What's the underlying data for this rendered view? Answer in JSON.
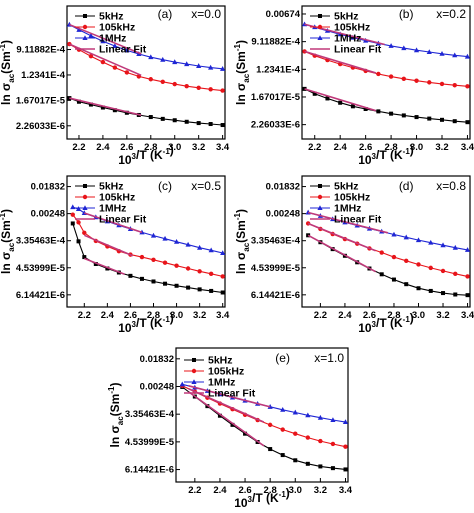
{
  "figure": {
    "y_axis_label": {
      "base": "ln σ",
      "sub": "ac",
      "unit_open": "(Sm",
      "unit_sup": "-1",
      "unit_close": ")"
    },
    "x_axis_label": {
      "base": "10",
      "sup": "3",
      "rest": "/T (K",
      "rest_sup": "-1",
      "rest_close": ")"
    },
    "x_ticks": [
      "2.2",
      "2.4",
      "2.6",
      "2.8",
      "3.0",
      "3.2",
      "3.4"
    ],
    "legend": [
      "5kHz",
      "105kHz",
      "1MHz",
      "Linear Fit"
    ]
  },
  "colors": {
    "5kHz": "#000000",
    "105kHz": "#e8141a",
    "1MHz": "#1f26d4",
    "Linear Fit": "#c0397a"
  },
  "chart_data": [
    {
      "type": "scatter",
      "panel_label": "(a)",
      "composition": "x=0.0",
      "y_axis_scale": "log",
      "x_lim": [
        2.1,
        3.42
      ],
      "y_lim": [
        8e-07,
        0.028
      ],
      "y_ticks": [
        "9.11882E-4",
        "1.2341E-4",
        "1.67017E-5",
        "2.26033E-6"
      ],
      "series": [
        {
          "name": "5kHz",
          "marker": "square",
          "x": [
            2.12,
            2.2,
            2.3,
            2.4,
            2.5,
            2.6,
            2.7,
            2.8,
            2.9,
            3.0,
            3.1,
            3.2,
            3.3,
            3.4
          ],
          "y": [
            2e-05,
            1.5e-05,
            1.2e-05,
            9.5e-06,
            7.7e-06,
            6.3e-06,
            5.3e-06,
            4.5e-06,
            3.9e-06,
            3.5e-06,
            3.1e-06,
            2.8e-06,
            2.6e-06,
            2.4e-06
          ]
        },
        {
          "name": "105kHz",
          "marker": "circle",
          "x": [
            2.12,
            2.2,
            2.3,
            2.4,
            2.5,
            2.6,
            2.7,
            2.8,
            2.9,
            3.0,
            3.1,
            3.2,
            3.3,
            3.4
          ],
          "y": [
            0.0014,
            0.0009,
            0.00054,
            0.00034,
            0.00022,
            0.00015,
            0.00011,
            8.8e-05,
            7.2e-05,
            6e-05,
            5.1e-05,
            4.5e-05,
            4e-05,
            3.6e-05
          ]
        },
        {
          "name": "1MHz",
          "marker": "triangle",
          "x": [
            2.12,
            2.2,
            2.3,
            2.4,
            2.5,
            2.6,
            2.7,
            2.8,
            2.9,
            3.0,
            3.1,
            3.2,
            3.3,
            3.4
          ],
          "y": [
            0.0065,
            0.0043,
            0.0027,
            0.00175,
            0.0012,
            0.00085,
            0.00064,
            0.0005,
            0.00041,
            0.00034,
            0.00029,
            0.00025,
            0.00022,
            0.0002
          ]
        }
      ],
      "fit_lines": [
        {
          "series": "5kHz",
          "x": [
            2.12,
            2.72
          ],
          "y": [
            2e-05,
            5.2e-06
          ]
        },
        {
          "series": "105kHz",
          "x": [
            2.12,
            2.72
          ],
          "y": [
            0.0014,
            0.00012
          ]
        },
        {
          "series": "1MHz",
          "x": [
            2.12,
            2.72
          ],
          "y": [
            0.0065,
            0.00065
          ]
        }
      ]
    },
    {
      "type": "scatter",
      "panel_label": "(b)",
      "composition": "x=0.2",
      "y_axis_scale": "log",
      "x_lim": [
        2.1,
        3.42
      ],
      "y_lim": [
        8e-07,
        0.012
      ],
      "y_ticks": [
        "0.00674",
        "9.11882E-4",
        "1.2341E-4",
        "1.67017E-5",
        "2.26033E-6"
      ],
      "series": [
        {
          "name": "5kHz",
          "marker": "square",
          "x": [
            2.12,
            2.2,
            2.3,
            2.4,
            2.5,
            2.6,
            2.7,
            2.8,
            2.9,
            3.0,
            3.1,
            3.2,
            3.3,
            3.4
          ],
          "y": [
            3e-05,
            2.1e-05,
            1.5e-05,
            1.1e-05,
            8.5e-06,
            7e-06,
            5.9e-06,
            5e-06,
            4.4e-06,
            3.9e-06,
            3.5e-06,
            3.2e-06,
            2.9e-06,
            2.7e-06
          ]
        },
        {
          "name": "105kHz",
          "marker": "circle",
          "x": [
            2.12,
            2.2,
            2.3,
            2.4,
            2.5,
            2.6,
            2.7,
            2.8,
            2.9,
            3.0,
            3.1,
            3.2,
            3.3,
            3.4
          ],
          "y": [
            0.00045,
            0.00033,
            0.00024,
            0.00018,
            0.00014,
            0.00011,
            8.8e-05,
            7.3e-05,
            6.2e-05,
            5.4e-05,
            4.8e-05,
            4.3e-05,
            3.9e-05,
            3.6e-05
          ]
        },
        {
          "name": "1MHz",
          "marker": "triangle",
          "x": [
            2.12,
            2.2,
            2.3,
            2.4,
            2.5,
            2.6,
            2.7,
            2.8,
            2.9,
            3.0,
            3.1,
            3.2,
            3.3,
            3.4
          ],
          "y": [
            0.0032,
            0.0026,
            0.002,
            0.00155,
            0.00122,
            0.00098,
            0.0008,
            0.00067,
            0.00057,
            0.00049,
            0.00043,
            0.00038,
            0.00034,
            0.00031
          ]
        }
      ],
      "fit_lines": [
        {
          "series": "5kHz",
          "x": [
            2.12,
            2.68
          ],
          "y": [
            3e-05,
            6.2e-06
          ]
        },
        {
          "series": "105kHz",
          "x": [
            2.12,
            2.68
          ],
          "y": [
            0.00045,
            9.5e-05
          ]
        },
        {
          "series": "1MHz",
          "x": [
            2.12,
            2.75
          ],
          "y": [
            0.0032,
            0.00074
          ]
        }
      ]
    },
    {
      "type": "scatter",
      "panel_label": "(c)",
      "composition": "x=0.5",
      "y_axis_scale": "log",
      "x_lim": [
        2.05,
        3.42
      ],
      "y_lim": [
        2.5e-06,
        0.04
      ],
      "y_ticks": [
        "0.01832",
        "0.00248",
        "3.35463E-4",
        "4.53999E-5",
        "6.14421E-6"
      ],
      "series": [
        {
          "name": "5kHz",
          "marker": "square",
          "x": [
            2.1,
            2.15,
            2.2,
            2.3,
            2.4,
            2.5,
            2.6,
            2.7,
            2.8,
            2.9,
            3.0,
            3.1,
            3.2,
            3.3,
            3.4
          ],
          "y": [
            0.0012,
            0.00032,
            0.0001,
            6e-05,
            4.3e-05,
            3.2e-05,
            2.5e-05,
            2e-05,
            1.65e-05,
            1.4e-05,
            1.2e-05,
            1.05e-05,
            9.2e-06,
            8.2e-06,
            7.3e-06
          ]
        },
        {
          "name": "105kHz",
          "marker": "circle",
          "x": [
            2.1,
            2.15,
            2.2,
            2.3,
            2.4,
            2.5,
            2.6,
            2.7,
            2.8,
            2.9,
            3.0,
            3.1,
            3.2,
            3.3,
            3.4
          ],
          "y": [
            0.0023,
            0.0013,
            0.0006,
            0.00033,
            0.00022,
            0.000155,
            0.00012,
            0.0001,
            8.2e-05,
            6.6e-05,
            5.3e-05,
            4.3e-05,
            3.5e-05,
            2.9e-05,
            2.4e-05
          ]
        },
        {
          "name": "1MHz",
          "marker": "triangle",
          "x": [
            2.1,
            2.15,
            2.2,
            2.3,
            2.4,
            2.5,
            2.6,
            2.7,
            2.8,
            2.9,
            3.0,
            3.1,
            3.2,
            3.3,
            3.4
          ],
          "y": [
            0.004,
            0.0035,
            0.0026,
            0.0019,
            0.0014,
            0.00105,
            0.0008,
            0.00062,
            0.00049,
            0.00039,
            0.00031,
            0.00025,
            0.0002,
            0.000165,
            0.000135
          ]
        }
      ],
      "fit_lines": [
        {
          "series": "5kHz",
          "x": [
            2.2,
            2.55
          ],
          "y": [
            9e-05,
            2.8e-05
          ]
        },
        {
          "series": "105kHz",
          "x": [
            2.2,
            2.62
          ],
          "y": [
            0.0005,
            0.00011
          ]
        },
        {
          "series": "1MHz",
          "x": [
            2.2,
            2.7
          ],
          "y": [
            0.0026,
            0.00062
          ]
        }
      ]
    },
    {
      "type": "scatter",
      "panel_label": "(d)",
      "composition": "x=0.8",
      "y_axis_scale": "log",
      "x_lim": [
        2.05,
        3.42
      ],
      "y_lim": [
        2.5e-06,
        0.04
      ],
      "y_ticks": [
        "0.01832",
        "0.00248",
        "3.35463E-4",
        "4.53999E-5",
        "6.14421E-6"
      ],
      "series": [
        {
          "name": "5kHz",
          "marker": "square",
          "x": [
            2.1,
            2.2,
            2.3,
            2.4,
            2.5,
            2.6,
            2.7,
            2.8,
            2.9,
            3.0,
            3.1,
            3.2,
            3.3,
            3.4
          ],
          "y": [
            0.0005,
            0.0003,
            0.00018,
            0.00011,
            6.8e-05,
            4.3e-05,
            2.8e-05,
            1.9e-05,
            1.35e-05,
            1e-05,
            8.2e-06,
            7e-06,
            6.3e-06,
            6e-06
          ]
        },
        {
          "name": "105kHz",
          "marker": "circle",
          "x": [
            2.1,
            2.2,
            2.3,
            2.4,
            2.5,
            2.6,
            2.7,
            2.8,
            2.9,
            3.0,
            3.1,
            3.2,
            3.3,
            3.4
          ],
          "y": [
            0.0012,
            0.0008,
            0.00055,
            0.00038,
            0.00027,
            0.00019,
            0.00014,
            0.0001,
            7.6e-05,
            5.8e-05,
            4.5e-05,
            3.6e-05,
            2.9e-05,
            2.4e-05
          ]
        },
        {
          "name": "1MHz",
          "marker": "triangle",
          "x": [
            2.1,
            2.2,
            2.3,
            2.4,
            2.5,
            2.6,
            2.7,
            2.8,
            2.9,
            3.0,
            3.1,
            3.2,
            3.3,
            3.4
          ],
          "y": [
            0.0027,
            0.0021,
            0.00165,
            0.0013,
            0.00103,
            0.00082,
            0.00066,
            0.00053,
            0.00043,
            0.00035,
            0.00029,
            0.00024,
            0.0002,
            0.00017
          ]
        }
      ],
      "fit_lines": [
        {
          "series": "5kHz",
          "x": [
            2.1,
            2.65
          ],
          "y": [
            0.0005,
            3.4e-05
          ]
        },
        {
          "series": "105kHz",
          "x": [
            2.1,
            2.65
          ],
          "y": [
            0.0012,
            0.00016
          ]
        },
        {
          "series": "1MHz",
          "x": [
            2.1,
            2.75
          ],
          "y": [
            0.0027,
            0.0006
          ]
        }
      ]
    },
    {
      "type": "scatter",
      "panel_label": "(e)",
      "composition": "x=1.0",
      "y_axis_scale": "log",
      "x_lim": [
        2.05,
        3.42
      ],
      "y_lim": [
        2.5e-06,
        0.04
      ],
      "y_ticks": [
        "0.01832",
        "0.00248",
        "3.35463E-4",
        "4.53999E-5",
        "6.14421E-6"
      ],
      "series": [
        {
          "name": "5kHz",
          "marker": "square",
          "x": [
            2.1,
            2.2,
            2.3,
            2.4,
            2.5,
            2.6,
            2.7,
            2.8,
            2.9,
            3.0,
            3.1,
            3.2,
            3.3,
            3.4
          ],
          "y": [
            0.0024,
            0.0012,
            0.0006,
            0.0003,
            0.000155,
            8.2e-05,
            4.5e-05,
            2.7e-05,
            1.75e-05,
            1.2e-05,
            9.3e-06,
            7.7e-06,
            6.8e-06,
            6.2e-06
          ]
        },
        {
          "name": "105kHz",
          "marker": "circle",
          "x": [
            2.1,
            2.2,
            2.3,
            2.4,
            2.5,
            2.6,
            2.7,
            2.8,
            2.9,
            3.0,
            3.1,
            3.2,
            3.3,
            3.4
          ],
          "y": [
            0.0026,
            0.0017,
            0.0011,
            0.00072,
            0.00048,
            0.00032,
            0.00022,
            0.000155,
            0.00011,
            8.2e-05,
            6.2e-05,
            4.8e-05,
            3.9e-05,
            3.2e-05
          ]
        },
        {
          "name": "1MHz",
          "marker": "triangle",
          "x": [
            2.1,
            2.2,
            2.3,
            2.4,
            2.5,
            2.6,
            2.7,
            2.8,
            2.9,
            3.0,
            3.1,
            3.2,
            3.3,
            3.4
          ],
          "y": [
            0.0029,
            0.0023,
            0.0018,
            0.00142,
            0.00112,
            0.00089,
            0.00071,
            0.00057,
            0.00046,
            0.00038,
            0.00031,
            0.00026,
            0.00022,
            0.00019
          ]
        }
      ],
      "fit_lines": [
        {
          "series": "5kHz",
          "x": [
            2.15,
            2.75
          ],
          "y": [
            0.0017,
            3.4e-05
          ]
        },
        {
          "series": "105kHz",
          "x": [
            2.15,
            2.75
          ],
          "y": [
            0.0021,
            0.00019
          ]
        },
        {
          "series": "1MHz",
          "x": [
            2.15,
            2.8
          ],
          "y": [
            0.0026,
            0.00057
          ]
        }
      ]
    }
  ]
}
